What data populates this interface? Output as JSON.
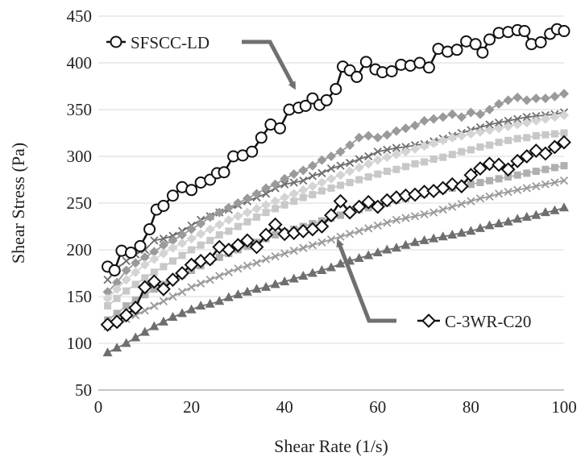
{
  "chart_data": {
    "type": "scatter",
    "xlabel": "Shear Rate (1/s)",
    "ylabel": "Shear Stress (Pa)",
    "xlim": [
      0,
      100
    ],
    "ylim": [
      50,
      450
    ],
    "xticks": [
      0,
      20,
      40,
      60,
      80,
      100
    ],
    "yticks": [
      50,
      100,
      150,
      200,
      250,
      300,
      350,
      400,
      450
    ],
    "grid": true,
    "legend": "none",
    "colors": {
      "highlight": "#111111",
      "gray_dark": "#6e6e6e",
      "gray_mid": "#8f8f8f",
      "gray_light": "#b9b9b9",
      "gray_pale": "#d2d2d2",
      "arrow": "#707070"
    },
    "annotations": [
      {
        "text": "SFSCC-LD",
        "target_series": "SFSCC-LD"
      },
      {
        "text": "C-3WR-C20",
        "target_series": "C-3WR-C20"
      }
    ],
    "series": [
      {
        "name": "SFSCC-LD",
        "marker": "circle-open",
        "color": "#111111",
        "highlight": true,
        "x": [
          2,
          3.5,
          5,
          7,
          9,
          11,
          12.5,
          14,
          16,
          18,
          20,
          22,
          24,
          25.5,
          27,
          29,
          31,
          33,
          35,
          37,
          39,
          41,
          43,
          44.5,
          46,
          47.5,
          49,
          51,
          52.5,
          54,
          55.5,
          57.5,
          59.5,
          61,
          63,
          65,
          67,
          69,
          71,
          73,
          75,
          77,
          79,
          81,
          82.5,
          84,
          86,
          88,
          90,
          91.5,
          93,
          95,
          97,
          98.5,
          100
        ],
        "y": [
          182,
          178,
          199,
          197,
          204,
          222,
          243,
          247,
          258,
          267,
          264,
          272,
          275,
          282,
          283,
          300,
          301,
          305,
          320,
          334,
          330,
          350,
          352,
          354,
          362,
          355,
          360,
          372,
          396,
          392,
          385,
          401,
          393,
          390,
          391,
          398,
          397,
          400,
          395,
          415,
          412,
          414,
          423,
          420,
          411,
          425,
          432,
          433,
          435,
          434,
          420,
          422,
          431,
          436,
          434
        ]
      },
      {
        "name": "C-3WR-C20",
        "marker": "diamond-open",
        "color": "#111111",
        "highlight": true,
        "x": [
          2,
          4,
          6,
          8,
          10,
          12,
          14,
          16,
          18,
          20,
          22,
          24,
          26,
          28,
          30,
          32,
          34,
          36,
          38,
          40,
          42,
          44,
          46,
          48,
          50,
          52,
          54,
          56,
          58,
          60,
          62,
          64,
          66,
          68,
          70,
          72,
          74,
          76,
          78,
          80,
          82,
          84,
          86,
          88,
          90,
          92,
          94,
          96,
          98,
          100
        ],
        "y": [
          120,
          123,
          130,
          138,
          160,
          166,
          158,
          168,
          175,
          184,
          188,
          190,
          203,
          200,
          205,
          210,
          203,
          216,
          227,
          217,
          218,
          220,
          222,
          225,
          237,
          252,
          240,
          246,
          251,
          246,
          253,
          256,
          258,
          259,
          262,
          263,
          266,
          270,
          268,
          280,
          287,
          292,
          291,
          286,
          295,
          300,
          306,
          303,
          310,
          315
        ]
      },
      {
        "name": "",
        "marker": "triangle",
        "color": "#6e6e6e",
        "x": [
          2,
          4,
          6,
          8,
          10,
          12,
          14,
          16,
          18,
          20,
          22,
          24,
          26,
          28,
          30,
          32,
          34,
          36,
          38,
          40,
          42,
          44,
          46,
          48,
          50,
          52,
          54,
          56,
          58,
          60,
          62,
          64,
          66,
          68,
          70,
          72,
          74,
          76,
          78,
          80,
          82,
          84,
          86,
          88,
          90,
          92,
          94,
          96,
          98,
          100
        ],
        "y": [
          90,
          95,
          100,
          106,
          112,
          118,
          123,
          128,
          132,
          136,
          140,
          142,
          145,
          149,
          152,
          155,
          158,
          160,
          163,
          166,
          169,
          172,
          175,
          178,
          181,
          185,
          188,
          191,
          194,
          197,
          200,
          202,
          205,
          208,
          210,
          212,
          214,
          216,
          218,
          220,
          223,
          226,
          228,
          230,
          233,
          235,
          237,
          240,
          242,
          245
        ]
      },
      {
        "name": "",
        "marker": "cross",
        "color": "#6e6e6e",
        "x": [
          2,
          4,
          6,
          8,
          10,
          12,
          14,
          16,
          18,
          20,
          22,
          24,
          26,
          28,
          30,
          32,
          34,
          36,
          38,
          40,
          42,
          44,
          46,
          48,
          50,
          52,
          54,
          56,
          58,
          60,
          62,
          64,
          66,
          68,
          70,
          72,
          74,
          76,
          78,
          80,
          82,
          84,
          86,
          88,
          90,
          92,
          94,
          96,
          98,
          100
        ],
        "y": [
          168,
          180,
          188,
          195,
          200,
          210,
          212,
          215,
          220,
          226,
          232,
          236,
          240,
          243,
          248,
          252,
          256,
          260,
          266,
          270,
          272,
          274,
          279,
          282,
          287,
          290,
          293,
          297,
          300,
          305,
          307,
          309,
          310,
          312,
          313,
          316,
          319,
          322,
          325,
          328,
          331,
          334,
          336,
          338,
          340,
          342,
          343,
          344,
          345,
          347
        ]
      },
      {
        "name": "",
        "marker": "diamond",
        "color": "#9a9a9a",
        "x": [
          2,
          4,
          6,
          8,
          10,
          12,
          14,
          16,
          18,
          20,
          22,
          24,
          26,
          28,
          30,
          32,
          34,
          36,
          38,
          40,
          42,
          44,
          46,
          48,
          50,
          52,
          54,
          56,
          58,
          60,
          62,
          64,
          66,
          68,
          70,
          72,
          74,
          76,
          78,
          80,
          82,
          84,
          86,
          88,
          90,
          92,
          94,
          96,
          98,
          100
        ],
        "y": [
          155,
          165,
          178,
          186,
          192,
          198,
          205,
          210,
          216,
          222,
          228,
          235,
          240,
          245,
          250,
          255,
          260,
          266,
          270,
          276,
          281,
          285,
          290,
          296,
          300,
          305,
          312,
          320,
          322,
          320,
          323,
          327,
          330,
          333,
          338,
          340,
          342,
          345,
          342,
          347,
          345,
          350,
          356,
          360,
          363,
          360,
          362,
          362,
          364,
          367
        ]
      },
      {
        "name": "",
        "marker": "square",
        "color": "#c8c8c8",
        "x": [
          2,
          4,
          6,
          8,
          10,
          12,
          14,
          16,
          18,
          20,
          22,
          24,
          26,
          28,
          30,
          32,
          34,
          36,
          38,
          40,
          42,
          44,
          46,
          48,
          50,
          52,
          54,
          56,
          58,
          60,
          62,
          64,
          66,
          68,
          70,
          72,
          74,
          76,
          78,
          80,
          82,
          84,
          86,
          88,
          90,
          92,
          94,
          96,
          98,
          100
        ],
        "y": [
          140,
          148,
          156,
          163,
          170,
          176,
          182,
          188,
          194,
          200,
          205,
          210,
          216,
          220,
          225,
          230,
          235,
          240,
          244,
          248,
          252,
          256,
          259,
          263,
          266,
          269,
          272,
          275,
          278,
          281,
          284,
          286,
          289,
          292,
          294,
          297,
          299,
          302,
          305,
          307,
          310,
          312,
          315,
          317,
          319,
          320,
          322,
          323,
          324,
          325
        ]
      },
      {
        "name": "",
        "marker": "square",
        "color": "#b0b0b0",
        "x": [
          2,
          4,
          6,
          8,
          10,
          12,
          14,
          16,
          18,
          20,
          22,
          24,
          26,
          28,
          30,
          32,
          34,
          36,
          38,
          40,
          42,
          44,
          46,
          48,
          50,
          52,
          54,
          56,
          58,
          60,
          62,
          64,
          66,
          68,
          70,
          72,
          74,
          76,
          78,
          80,
          82,
          84,
          86,
          88,
          90,
          92,
          94,
          96,
          98,
          100
        ],
        "y": [
          125,
          132,
          140,
          146,
          152,
          158,
          163,
          168,
          173,
          178,
          183,
          188,
          192,
          196,
          200,
          204,
          208,
          212,
          216,
          219,
          222,
          225,
          228,
          231,
          234,
          237,
          240,
          243,
          245,
          248,
          250,
          253,
          255,
          258,
          260,
          262,
          264,
          266,
          268,
          270,
          272,
          274,
          276,
          278,
          280,
          282,
          284,
          286,
          288,
          290
        ]
      },
      {
        "name": "",
        "marker": "cross",
        "color": "#9a9a9a",
        "x": [
          2,
          4,
          6,
          8,
          10,
          12,
          14,
          16,
          18,
          20,
          22,
          24,
          26,
          28,
          30,
          32,
          34,
          36,
          38,
          40,
          42,
          44,
          46,
          48,
          50,
          52,
          54,
          56,
          58,
          60,
          62,
          64,
          66,
          68,
          70,
          72,
          74,
          76,
          78,
          80,
          82,
          84,
          86,
          88,
          90,
          92,
          94,
          96,
          98,
          100
        ],
        "y": [
          118,
          122,
          126,
          130,
          135,
          140,
          145,
          150,
          155,
          160,
          164,
          168,
          172,
          176,
          180,
          183,
          186,
          190,
          193,
          196,
          199,
          202,
          205,
          208,
          211,
          214,
          217,
          220,
          223,
          226,
          229,
          232,
          234,
          236,
          238,
          240,
          243,
          246,
          249,
          252,
          255,
          257,
          260,
          262,
          264,
          266,
          268,
          270,
          272,
          274
        ]
      },
      {
        "name": "",
        "marker": "diamond",
        "color": "#d4d4d4",
        "x": [
          2,
          4,
          6,
          8,
          10,
          12,
          14,
          16,
          18,
          20,
          22,
          24,
          26,
          28,
          30,
          32,
          34,
          36,
          38,
          40,
          42,
          44,
          46,
          48,
          50,
          52,
          54,
          56,
          58,
          60,
          62,
          64,
          66,
          68,
          70,
          72,
          74,
          76,
          78,
          80,
          82,
          84,
          86,
          88,
          90,
          92,
          94,
          96,
          98,
          100
        ],
        "y": [
          148,
          158,
          168,
          176,
          184,
          190,
          196,
          202,
          207,
          212,
          217,
          222,
          227,
          232,
          236,
          240,
          244,
          248,
          252,
          256,
          260,
          264,
          268,
          272,
          276,
          280,
          284,
          288,
          292,
          296,
          299,
          302,
          305,
          308,
          311,
          314,
          317,
          320,
          322,
          324,
          326,
          328,
          330,
          332,
          334,
          336,
          338,
          340,
          342,
          344
        ]
      }
    ]
  }
}
